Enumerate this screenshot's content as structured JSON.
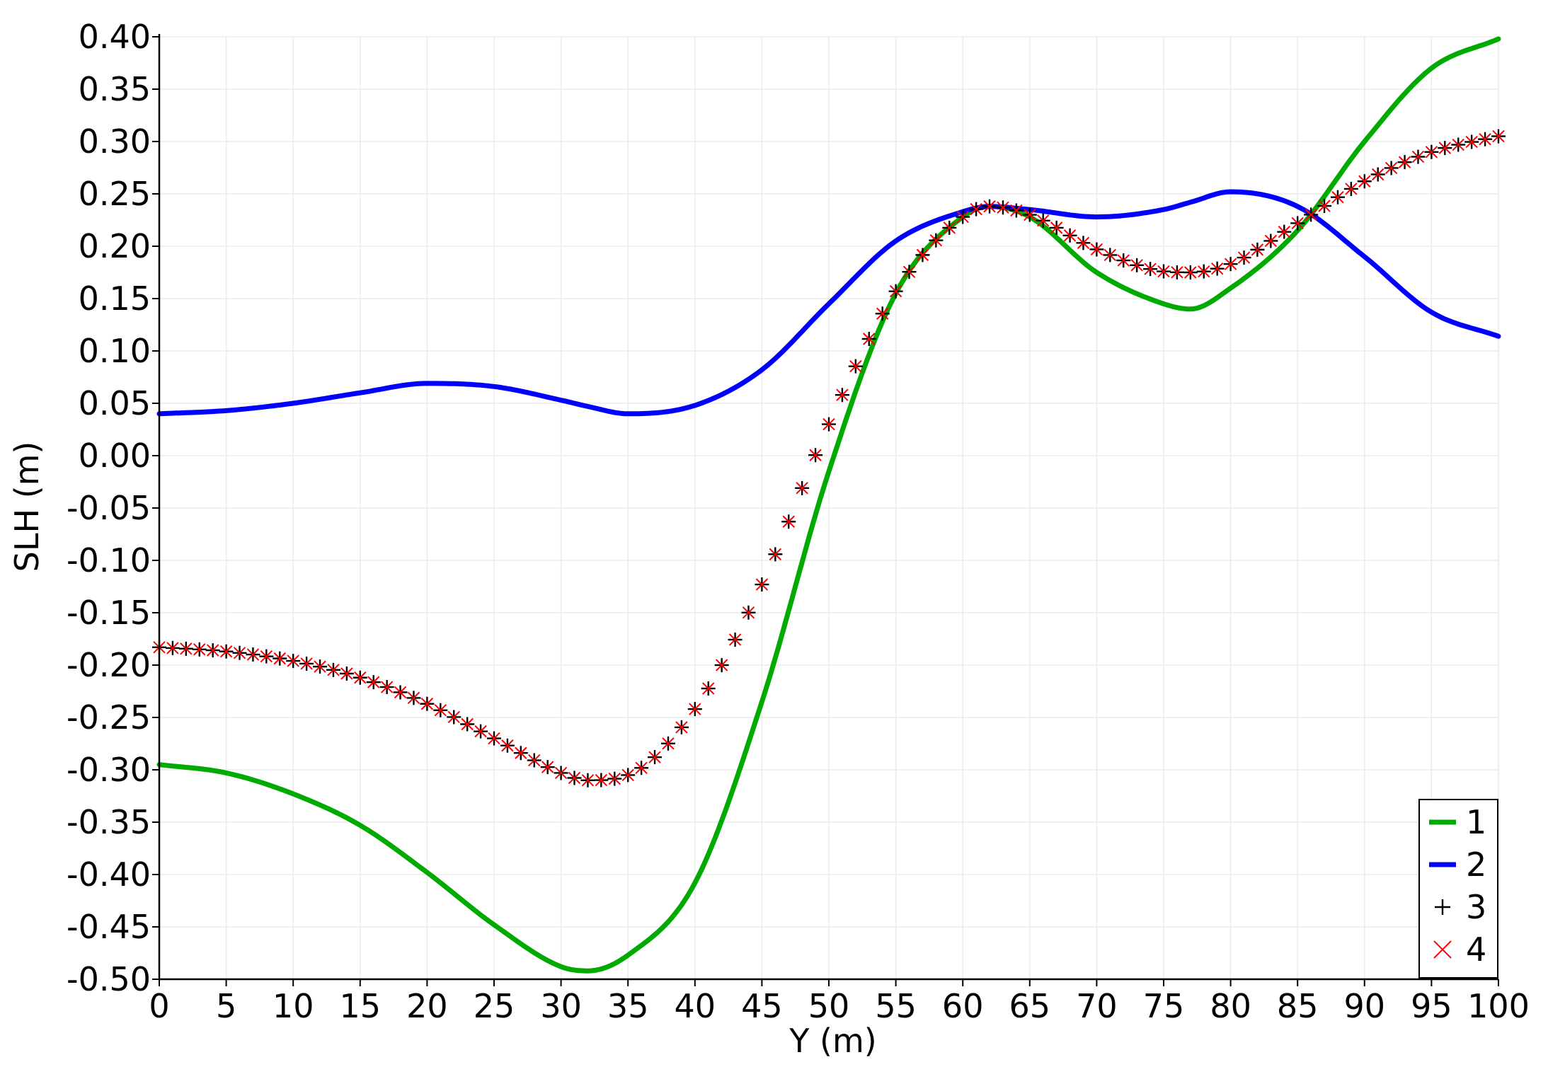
{
  "chart_data": {
    "type": "line",
    "title": "",
    "xlabel": "Y (m)",
    "ylabel": "SLH (m)",
    "xlim": [
      0,
      100
    ],
    "ylim": [
      -0.5,
      0.4
    ],
    "xticks": [
      0,
      5,
      10,
      15,
      20,
      25,
      30,
      35,
      40,
      45,
      50,
      55,
      60,
      65,
      70,
      75,
      80,
      85,
      90,
      95,
      100
    ],
    "yticks": [
      0.4,
      0.35,
      0.3,
      0.25,
      0.2,
      0.15,
      0.1,
      0.05,
      0.0,
      -0.05,
      -0.1,
      -0.15,
      -0.2,
      -0.25,
      -0.3,
      -0.35,
      -0.4,
      -0.45,
      -0.5
    ],
    "ytick_labels": [
      "0.40",
      "0.35",
      "0.30",
      "0.25",
      "0.20",
      "0.15",
      "0.10",
      "0.05",
      "0.00",
      "-0.05",
      "-0.10",
      "-0.15",
      "-0.20",
      "-0.25",
      "-0.30",
      "-0.35",
      "-0.40",
      "-0.45",
      "-0.50"
    ],
    "grid": true,
    "legend_position": "bottom-right",
    "x": [
      0,
      5,
      10,
      15,
      20,
      25,
      30,
      32,
      35,
      40,
      45,
      50,
      55,
      60,
      62,
      65,
      70,
      75,
      77,
      80,
      85,
      90,
      95,
      100
    ],
    "series": [
      {
        "name": "1",
        "style": "line",
        "color": "#00aa00",
        "values": [
          -0.295,
          -0.303,
          -0.323,
          -0.353,
          -0.398,
          -0.448,
          -0.488,
          -0.492,
          -0.477,
          -0.408,
          -0.235,
          -0.015,
          0.155,
          0.228,
          0.238,
          0.228,
          0.175,
          0.145,
          0.14,
          0.16,
          0.215,
          0.3,
          0.37,
          0.398
        ]
      },
      {
        "name": "2",
        "style": "line",
        "color": "#0000ff",
        "values": [
          0.04,
          0.043,
          0.05,
          0.06,
          0.069,
          0.066,
          0.053,
          0.047,
          0.04,
          0.048,
          0.082,
          0.145,
          0.205,
          0.233,
          0.238,
          0.235,
          0.228,
          0.235,
          0.242,
          0.252,
          0.238,
          0.19,
          0.137,
          0.114
        ]
      },
      {
        "name": "3",
        "style": "markers-plus",
        "color": "#000000",
        "values": [
          -0.183,
          -0.187,
          -0.196,
          -0.212,
          -0.237,
          -0.27,
          -0.303,
          -0.31,
          -0.305,
          -0.242,
          -0.123,
          0.03,
          0.157,
          0.228,
          0.238,
          0.23,
          0.197,
          0.176,
          0.175,
          0.183,
          0.222,
          0.262,
          0.29,
          0.305
        ]
      },
      {
        "name": "4",
        "style": "markers-x",
        "color": "#ff0000",
        "values": [
          -0.183,
          -0.187,
          -0.196,
          -0.212,
          -0.237,
          -0.27,
          -0.303,
          -0.31,
          -0.305,
          -0.242,
          -0.123,
          0.03,
          0.157,
          0.228,
          0.238,
          0.23,
          0.197,
          0.176,
          0.175,
          0.183,
          0.222,
          0.262,
          0.29,
          0.305
        ]
      }
    ]
  }
}
